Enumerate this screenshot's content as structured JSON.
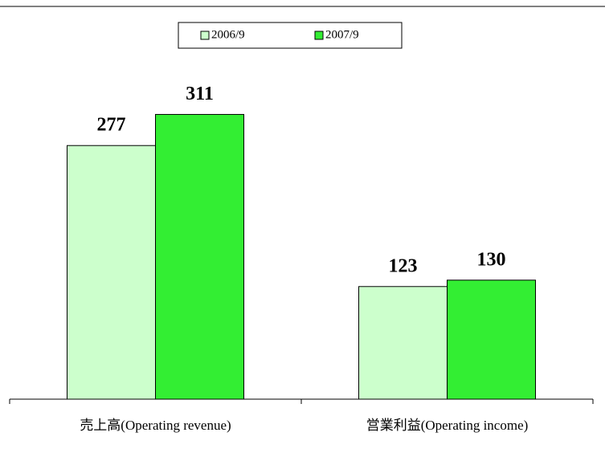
{
  "chart_data": {
    "type": "bar",
    "categories": [
      "売上高(Operating revenue)",
      "営業利益(Operating income)"
    ],
    "series": [
      {
        "name": "2006/9",
        "color": "#ccffcc",
        "values": [
          277,
          123
        ]
      },
      {
        "name": "2007/9",
        "color": "#33ee33",
        "values": [
          311,
          130
        ]
      }
    ],
    "ylim": [
      0,
      350
    ],
    "legend": "top"
  }
}
